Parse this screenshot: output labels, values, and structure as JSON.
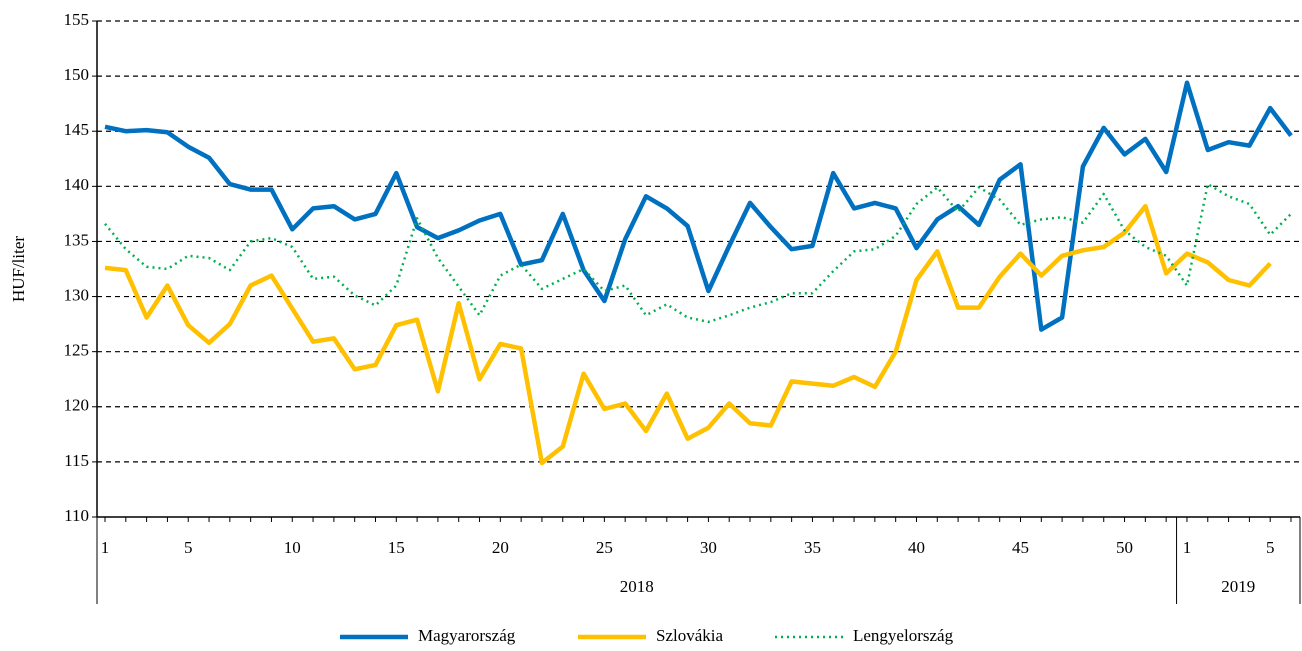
{
  "chart_data": {
    "type": "line",
    "y_label": "HUF/liter",
    "groups": [
      {
        "name": "2018",
        "categories": [
          "1",
          null,
          null,
          null,
          "5",
          null,
          null,
          null,
          null,
          "10",
          null,
          null,
          null,
          null,
          "15",
          null,
          null,
          null,
          null,
          "20",
          null,
          null,
          null,
          null,
          "25",
          null,
          null,
          null,
          null,
          "30",
          null,
          null,
          null,
          null,
          "35",
          null,
          null,
          null,
          null,
          "40",
          null,
          null,
          null,
          null,
          "45",
          null,
          null,
          null,
          null,
          "50",
          null,
          null
        ]
      },
      {
        "name": "2019",
        "categories": [
          "1",
          null,
          null,
          null,
          "5",
          null
        ]
      }
    ],
    "series": [
      {
        "name": "Magyarország",
        "color": "#0070c0",
        "style": "solid",
        "values": [
          145.4,
          145.0,
          145.1,
          144.9,
          143.6,
          142.6,
          140.2,
          139.7,
          139.7,
          136.1,
          138.0,
          138.2,
          137.0,
          137.5,
          141.2,
          136.3,
          135.3,
          136.0,
          136.9,
          137.5,
          132.9,
          133.3,
          137.5,
          132.4,
          129.6,
          135.2,
          139.1,
          138.0,
          136.4,
          130.5,
          134.6,
          138.5,
          136.3,
          134.3,
          134.6,
          141.2,
          138.0,
          138.5,
          138.0,
          134.4,
          137.0,
          138.2,
          136.5,
          140.6,
          142.0,
          127.0,
          128.1,
          141.8,
          145.3,
          142.9,
          144.3,
          141.3,
          149.4,
          143.3,
          144.0,
          143.7,
          147.1,
          144.6
        ]
      },
      {
        "name": "Szlovákia",
        "color": "#ffc000",
        "style": "solid",
        "values": [
          132.6,
          132.4,
          128.1,
          131.0,
          127.4,
          125.8,
          127.5,
          131.0,
          131.9,
          128.9,
          125.9,
          126.2,
          123.4,
          123.8,
          127.4,
          127.9,
          121.4,
          129.4,
          122.5,
          125.7,
          125.3,
          114.9,
          116.4,
          123.0,
          119.8,
          120.3,
          117.8,
          121.2,
          117.1,
          118.1,
          120.3,
          118.5,
          118.3,
          122.3,
          122.1,
          121.9,
          122.7,
          121.8,
          125.0,
          131.5,
          134.1,
          129.0,
          129.0,
          131.8,
          133.9,
          131.9,
          133.7,
          134.2,
          134.5,
          135.8,
          138.2,
          132.1,
          133.9,
          133.1,
          131.5,
          131.0,
          133.0,
          null
        ]
      },
      {
        "name": "Lengyelország",
        "color": "#00b050",
        "style": "dotted",
        "values": [
          136.6,
          134.3,
          132.7,
          132.5,
          133.7,
          133.5,
          132.4,
          135.0,
          135.3,
          134.5,
          131.6,
          131.8,
          130.1,
          129.2,
          131.0,
          137.1,
          133.5,
          130.9,
          128.3,
          131.9,
          132.9,
          130.7,
          131.6,
          132.5,
          130.5,
          131.0,
          128.3,
          129.3,
          128.1,
          127.7,
          128.3,
          129.0,
          129.5,
          130.3,
          130.3,
          132.3,
          134.1,
          134.3,
          135.5,
          138.4,
          139.9,
          137.7,
          139.9,
          138.8,
          136.5,
          137.0,
          137.2,
          136.7,
          139.3,
          136.0,
          134.5,
          133.7,
          131.0,
          140.2,
          139.1,
          138.4,
          135.6,
          137.5
        ]
      }
    ],
    "ylim": [
      110,
      155
    ],
    "yticks": [
      110,
      115,
      120,
      125,
      130,
      135,
      140,
      145,
      150,
      155
    ],
    "grid": true,
    "legend": "bottom"
  }
}
